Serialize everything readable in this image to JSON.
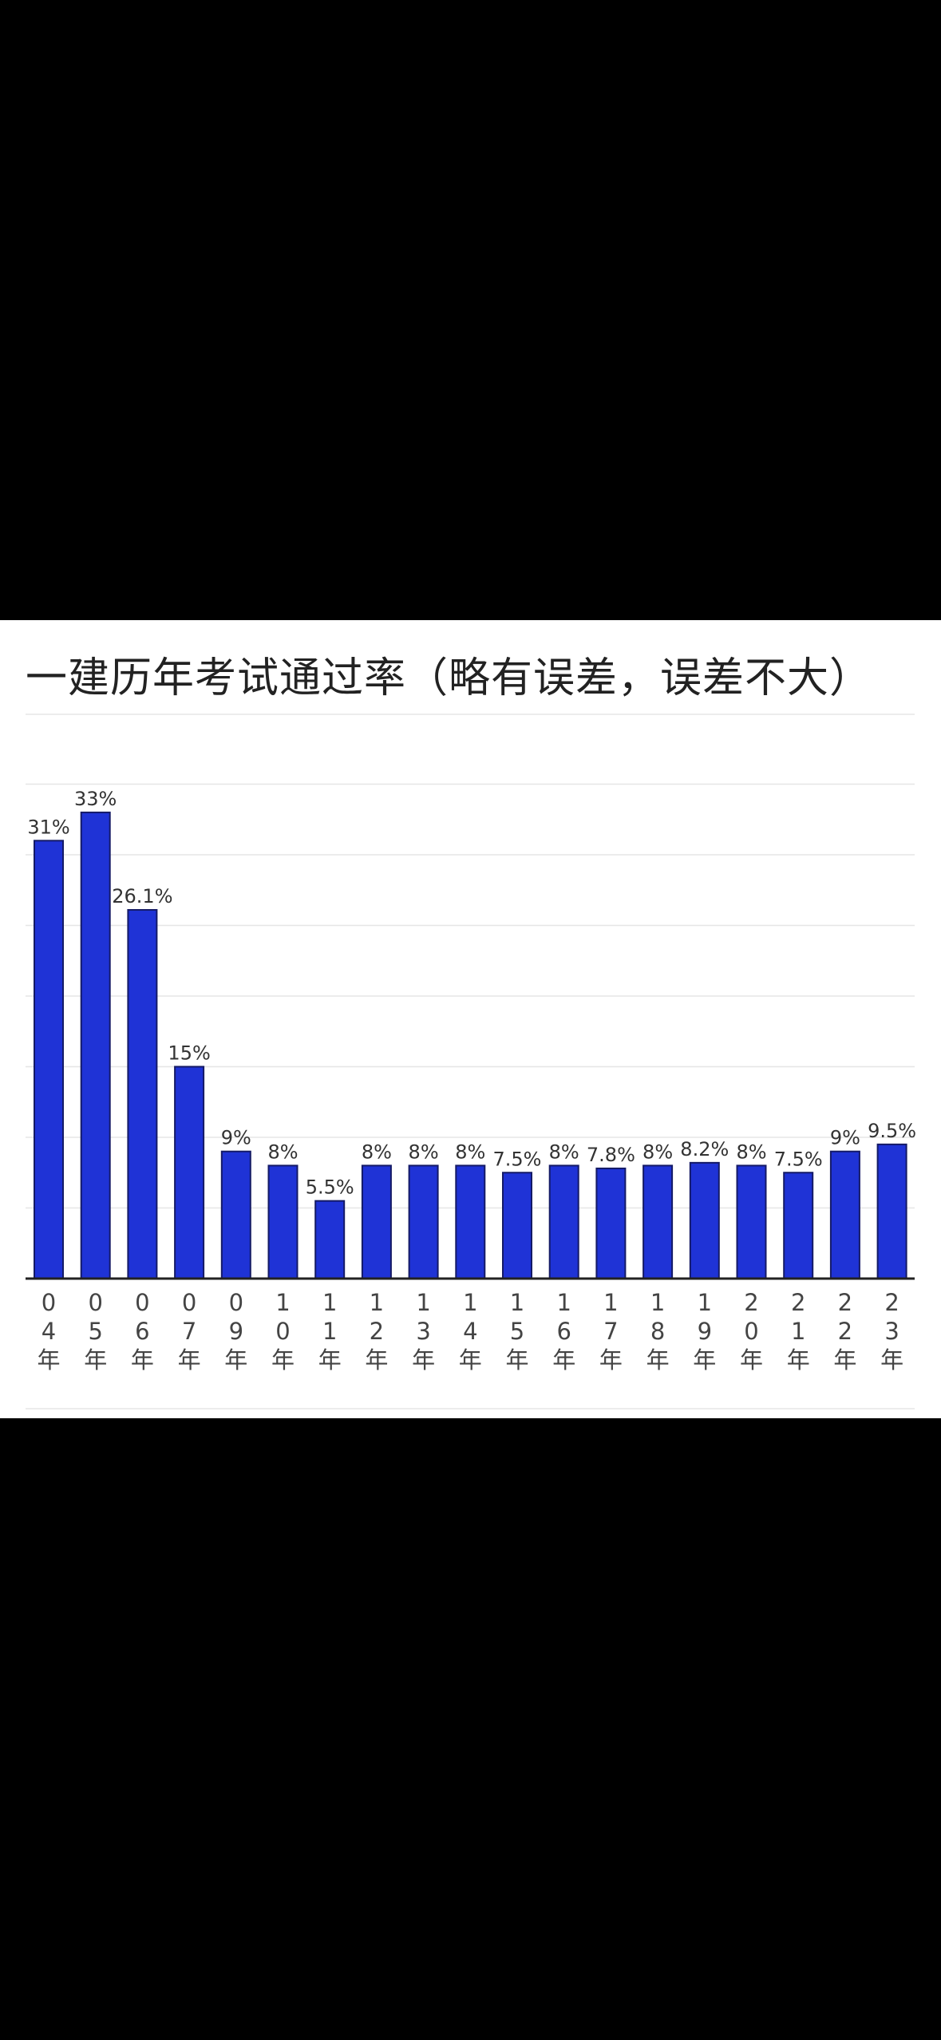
{
  "chart_data": {
    "type": "bar",
    "title": "一建历年考试通过率（略有误差，误差不大）",
    "categories": [
      "04年",
      "05年",
      "06年",
      "07年",
      "09年",
      "10年",
      "11年",
      "12年",
      "13年",
      "14年",
      "15年",
      "16年",
      "17年",
      "18年",
      "19年",
      "20年",
      "21年",
      "22年",
      "23年"
    ],
    "values": [
      31,
      33,
      26.1,
      15,
      9,
      8,
      5.5,
      8,
      8,
      8,
      7.5,
      8,
      7.8,
      8,
      8.2,
      8,
      7.5,
      9,
      9.5
    ],
    "data_labels": [
      "31%",
      "33%",
      "26.1%",
      "15%",
      "9%",
      "8%",
      "5.5%",
      "8%",
      "8%",
      "8%",
      "7.5%",
      "8%",
      "7.8%",
      "8%",
      "8.2%",
      "8%",
      "7.5%",
      "9%",
      "9.5%"
    ],
    "ylim": [
      0,
      35
    ],
    "grid": true,
    "xlabel": "",
    "ylabel": "",
    "colors": {
      "bar": "#1f33d6",
      "bar_edge": "#141a66",
      "axis": "#222222",
      "grid": "#e6e6e6"
    }
  }
}
